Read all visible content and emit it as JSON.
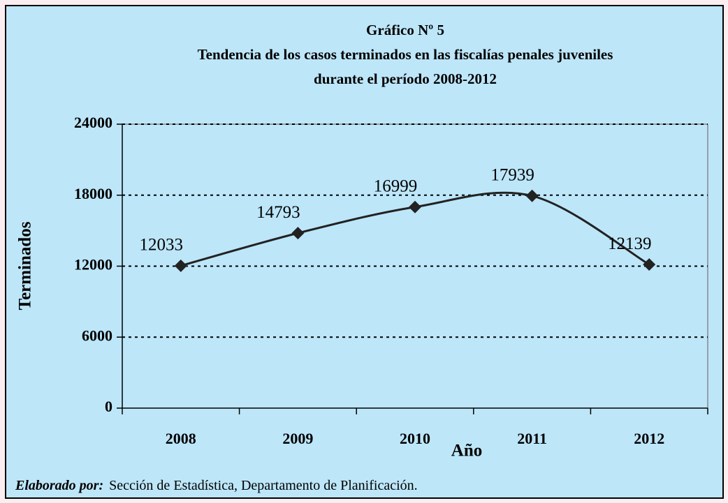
{
  "chart_data": {
    "type": "line",
    "title": "Gráfico Nº 5",
    "subtitle": [
      "Tendencia de los casos terminados en las fiscalías penales juveniles",
      "durante el período 2008-2012"
    ],
    "y_label": "Terminados",
    "x_label": "Año",
    "categories": [
      "2008",
      "2009",
      "2010",
      "2011",
      "2012"
    ],
    "series": [
      {
        "name": "Terminados",
        "color": "#222222",
        "values": [
          12033,
          14793,
          16999,
          17939,
          12139
        ]
      }
    ],
    "ylim": [
      0,
      24000
    ],
    "yticks": [
      0,
      6000,
      12000,
      18000,
      24000
    ],
    "grid": true,
    "smooth": true,
    "source_label": "Elaborado por:",
    "source": "Sección de Estadística, Departamento de Planificación."
  }
}
